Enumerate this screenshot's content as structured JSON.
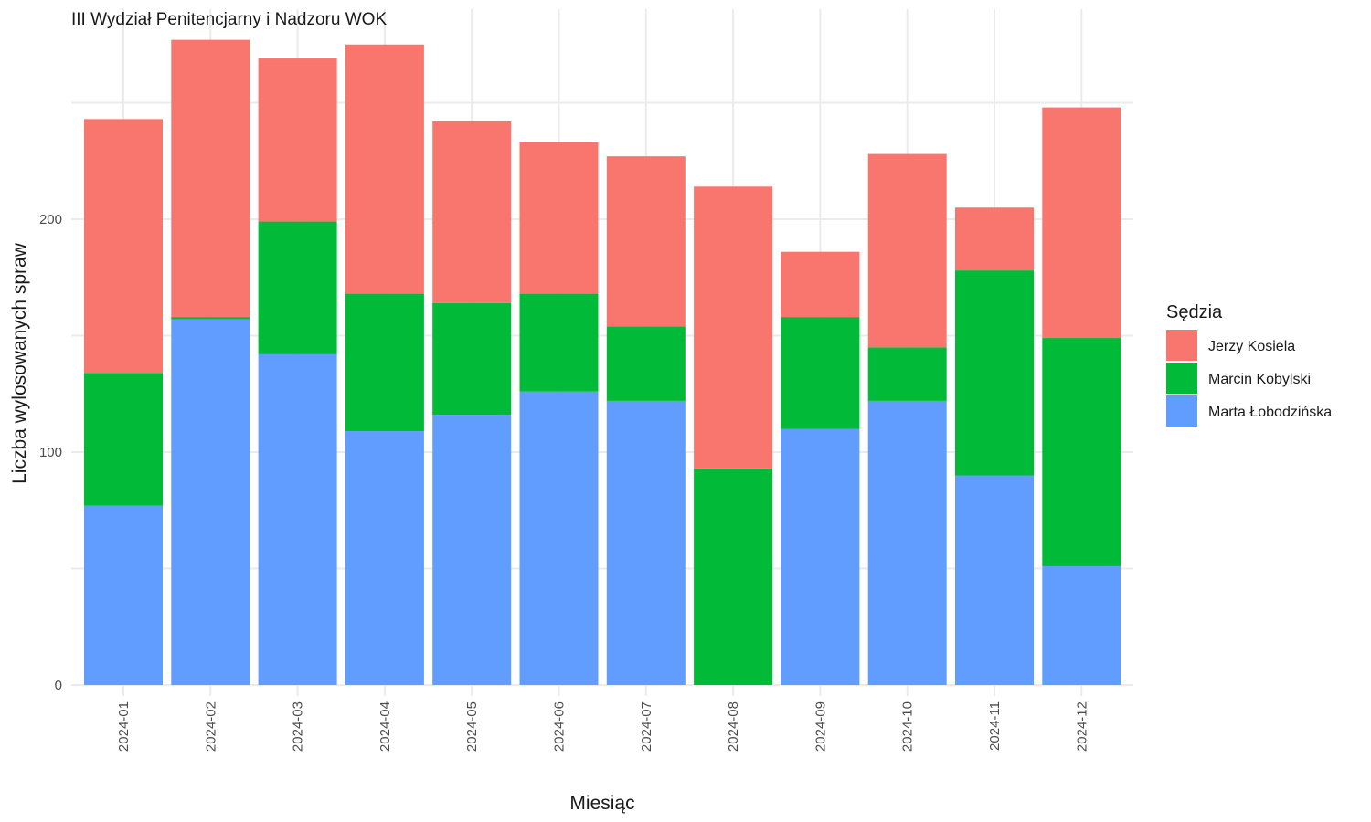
{
  "chart_data": {
    "type": "bar",
    "stacked": true,
    "title": "III Wydział Penitencjarny i Nadzoru WOK",
    "xlabel": "Miesiąc",
    "ylabel": "Liczba wylosowanych spraw",
    "ylim": [
      0,
      290
    ],
    "yticks": [
      "0",
      "100",
      "200"
    ],
    "grid": true,
    "legend": {
      "title": "Sędzia",
      "position": "right"
    },
    "categories": [
      "2024-01",
      "2024-02",
      "2024-03",
      "2024-04",
      "2024-05",
      "2024-06",
      "2024-07",
      "2024-08",
      "2024-09",
      "2024-10",
      "2024-11",
      "2024-12"
    ],
    "series": [
      {
        "name": "Marta Łobodzińska",
        "color": "#619CFF",
        "values": [
          77,
          157,
          142,
          109,
          116,
          126,
          122,
          0,
          110,
          122,
          90,
          51
        ]
      },
      {
        "name": "Marcin Kobylski",
        "color": "#00BA38",
        "values": [
          57,
          1,
          57,
          59,
          48,
          42,
          32,
          93,
          48,
          23,
          88,
          98
        ]
      },
      {
        "name": "Jerzy Kosiela",
        "color": "#F8766D",
        "values": [
          109,
          119,
          70,
          107,
          78,
          65,
          73,
          121,
          28,
          83,
          27,
          99
        ]
      }
    ],
    "legend_order": [
      "Jerzy Kosiela",
      "Marcin Kobylski",
      "Marta Łobodzińska"
    ]
  }
}
